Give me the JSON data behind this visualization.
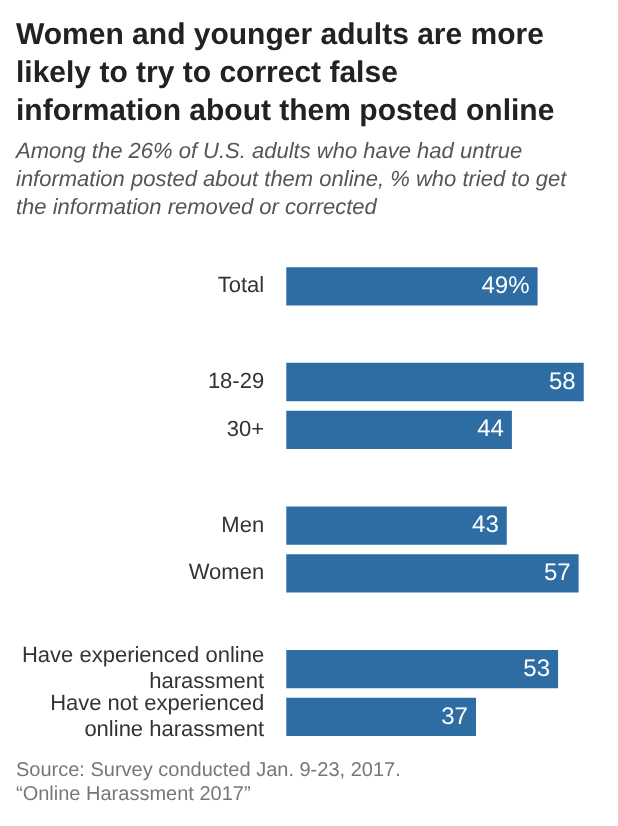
{
  "chart_data": {
    "type": "bar",
    "orientation": "horizontal",
    "title": "Women and younger adults are more likely to try to correct false information about them posted online",
    "subtitle": "Among the 26% of U.S. adults who have had untrue information posted about them online, % who tried to get the information removed or corrected",
    "categories": [
      "Total",
      null,
      "18-29",
      "30+",
      null,
      "Men",
      "Women",
      null,
      "Have experienced online harassment",
      "Have not experienced online harassment"
    ],
    "values": [
      49,
      null,
      58,
      44,
      null,
      43,
      57,
      null,
      53,
      37
    ],
    "value_labels": [
      "49%",
      null,
      "58",
      "44",
      null,
      "43",
      "57",
      null,
      "53",
      "37"
    ],
    "color": "#2d6da3",
    "legend": false,
    "annotations": [
      "Source: Survey conducted Jan. 9-23, 2017.",
      "“Online Harassment 2017”"
    ]
  }
}
